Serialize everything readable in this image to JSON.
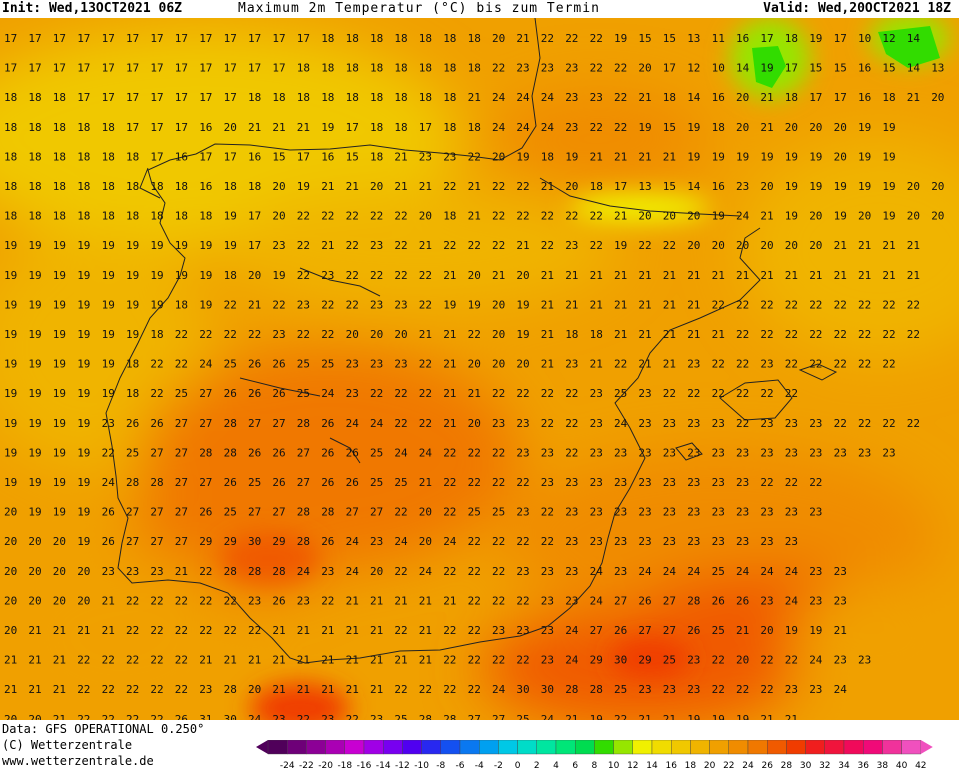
{
  "header": {
    "init": "Init: Wed,13OCT2021 06Z",
    "title": "Maximum 2m Temperatur (°C) bis zum Termin",
    "valid": "Valid: Wed,20OCT2021 18Z"
  },
  "footer": {
    "data_source": "Data: GFS OPERATIONAL 0.250°",
    "copyright": "(C) Wetterzentrale",
    "url": "www.wetterzentrale.de"
  },
  "legend": {
    "ticks": [
      "-24",
      "-22",
      "-20",
      "-18",
      "-16",
      "-14",
      "-12",
      "-10",
      "-8",
      "-6",
      "-4",
      "-2",
      "0",
      "2",
      "4",
      "6",
      "8",
      "10",
      "12",
      "14",
      "16",
      "18",
      "20",
      "22",
      "24",
      "26",
      "28",
      "30",
      "32",
      "34",
      "36",
      "38",
      "40",
      "42"
    ],
    "colors": [
      "#50005a",
      "#6e0078",
      "#8c0096",
      "#aa00b4",
      "#c800d2",
      "#a000e6",
      "#7800f0",
      "#5000f0",
      "#2828f0",
      "#1450f0",
      "#0a78f0",
      "#00a0f0",
      "#00c8e6",
      "#00dcc8",
      "#00e6a0",
      "#00e678",
      "#00dc50",
      "#32dc00",
      "#96e600",
      "#f0f000",
      "#f0dc00",
      "#f0c800",
      "#f0b400",
      "#f0a000",
      "#f08c00",
      "#f07800",
      "#f05a00",
      "#f03c00",
      "#f01e1e",
      "#f0143c",
      "#f00a5a",
      "#f00a78",
      "#f0329b",
      "#f050be"
    ]
  },
  "map": {
    "rows": [
      "17 17 17 17 17 17 17 17 17 17 17 17 17 18 18 18 18 18 18 18 20 21 22 22 22 19 15 15 13 11 16 17 18 19 17 10 12 14",
      "17 17 17 17 17 17 17 17 17 17 17 17 18 18 18 18 18 18 18 18 22 23 23 23 22 22 20 17 12 10 14 19 17 15 15 16 15 14 13",
      "18 18 18 17 17 17 17 17 17 17 18 18 18 18 18 18 18 18 18 21 24 24 24 23 23 22 21 18 14 16 20 21 18 17 17 16 18 21 20",
      "18 18 18 18 18 17 17 17 16 20 21 21 21 19 17 18 18 17 18 18 24 24 24 23 22 22 19 15 19 18 20 21 20 20 20 19 19",
      "18 18 18 18 18 18 17 16 17 17 16 15 17 16 15 18 21 23 23 22 20 19 18 19 21 21 21 21 19 19 19 19 19 19 20 19 19",
      "18 18 18 18 18 18 18 18 16 18 18 20 19 21 21 20 21 21 22 21 22 22 21 20 18 17 13 15 14 16 23 20 19 19 19 19 19 20 20",
      "18 18 18 18 18 18 18 18 18 19 17 20 22 22 22 22 22 20 18 21 22 22 22 22 22 21 20 20 20 19 24 21 19 20 19 20 19 20 20",
      "19 19 19 19 19 19 19 19 19 19 17 23 22 21 22 23 22 21 22 22 22 21 22 23 22 19 22 22 20 20 20 20 20 20 21 21 21 21",
      "19 19 19 19 19 19 19 19 19 18 20 19 22 23 22 22 22 22 21 20 21 20 21 21 21 21 21 21 21 21 21 21 21 21 21 21 21 21",
      "19 19 19 19 19 19 19 18 19 22 21 22 23 22 22 23 23 22 19 19 20 19 21 21 21 21 21 21 21 22 22 22 22 22 22 22 22 22",
      "19 19 19 19 19 19 18 22 22 22 22 23 22 22 20 20 20 21 21 22 20 19 21 18 18 21 21 21 21 21 22 22 22 22 22 22 22 22",
      "19 19 19 19 19 18 22 22 24 25 26 26 25 25 23 23 23 22 21 20 20 20 21 23 21 22 21 21 23 22 22 23 22 22 22 22 22",
      "19 19 19 19 19 18 22 25 27 26 26 26 25 24 23 22 22 22 21 21 22 22 22 22 23 25 23 22 22 22 22 22 22",
      "19 19 19 19 23 26 26 27 27 28 27 27 28 26 24 24 22 22 21 20 23 23 22 22 23 24 23 23 23 23 22 23 23 23 22 22 22 22",
      "19 19 19 19 22 25 27 27 28 28 26 26 27 26 26 25 24 24 22 22 22 23 23 22 23 23 23 23 23 23 23 23 23 23 23 23 23",
      "19 19 19 19 24 28 28 27 27 26 25 26 27 26 26 25 25 21 22 22 22 22 23 23 23 23 23 23 23 23 23 22 22 22",
      "20 19 19 19 26 27 27 27 26 25 27 27 28 28 27 27 22 20 22 25 25 23 22 23 23 23 23 23 23 23 23 23 23 23",
      "20 20 20 19 26 27 27 27 29 29 30 29 28 26 24 23 24 20 24 22 22 22 22 23 23 23 23 23 23 23 23 23 23",
      "20 20 20 20 23 23 23 21 22 28 28 28 24 23 24 20 22 24 22 22 22 23 23 23 24 23 24 24 24 25 24 24 24 23 23",
      "20 20 20 20 21 22 22 22 22 22 23 26 23 22 21 21 21 21 21 22 22 22 23 23 24 27 26 27 28 26 26 23 24 23 23",
      "20 21 21 21 21 22 22 22 22 22 22 21 21 21 21 21 22 21 22 22 23 23 23 24 27 26 27 27 26 25 21 20 19 19 21",
      "21 21 21 22 22 22 22 22 21 21 21 21 21 21 21 21 21 21 22 22 22 22 23 24 29 30 29 25 23 22 20 22 22 24 23 23",
      "21 21 21 22 22 22 22 22 23 28 20 21 21 21 21 21 22 22 22 22 24 30 30 28 28 25 23 23 23 22 22 22 23 23 24",
      "20 20 21 22 22 22 22 26 31 30 24 23 22 23 22 23 25 28 28 27 27 25 24 21 19 22 21 21 19 19 19 21 21"
    ]
  }
}
